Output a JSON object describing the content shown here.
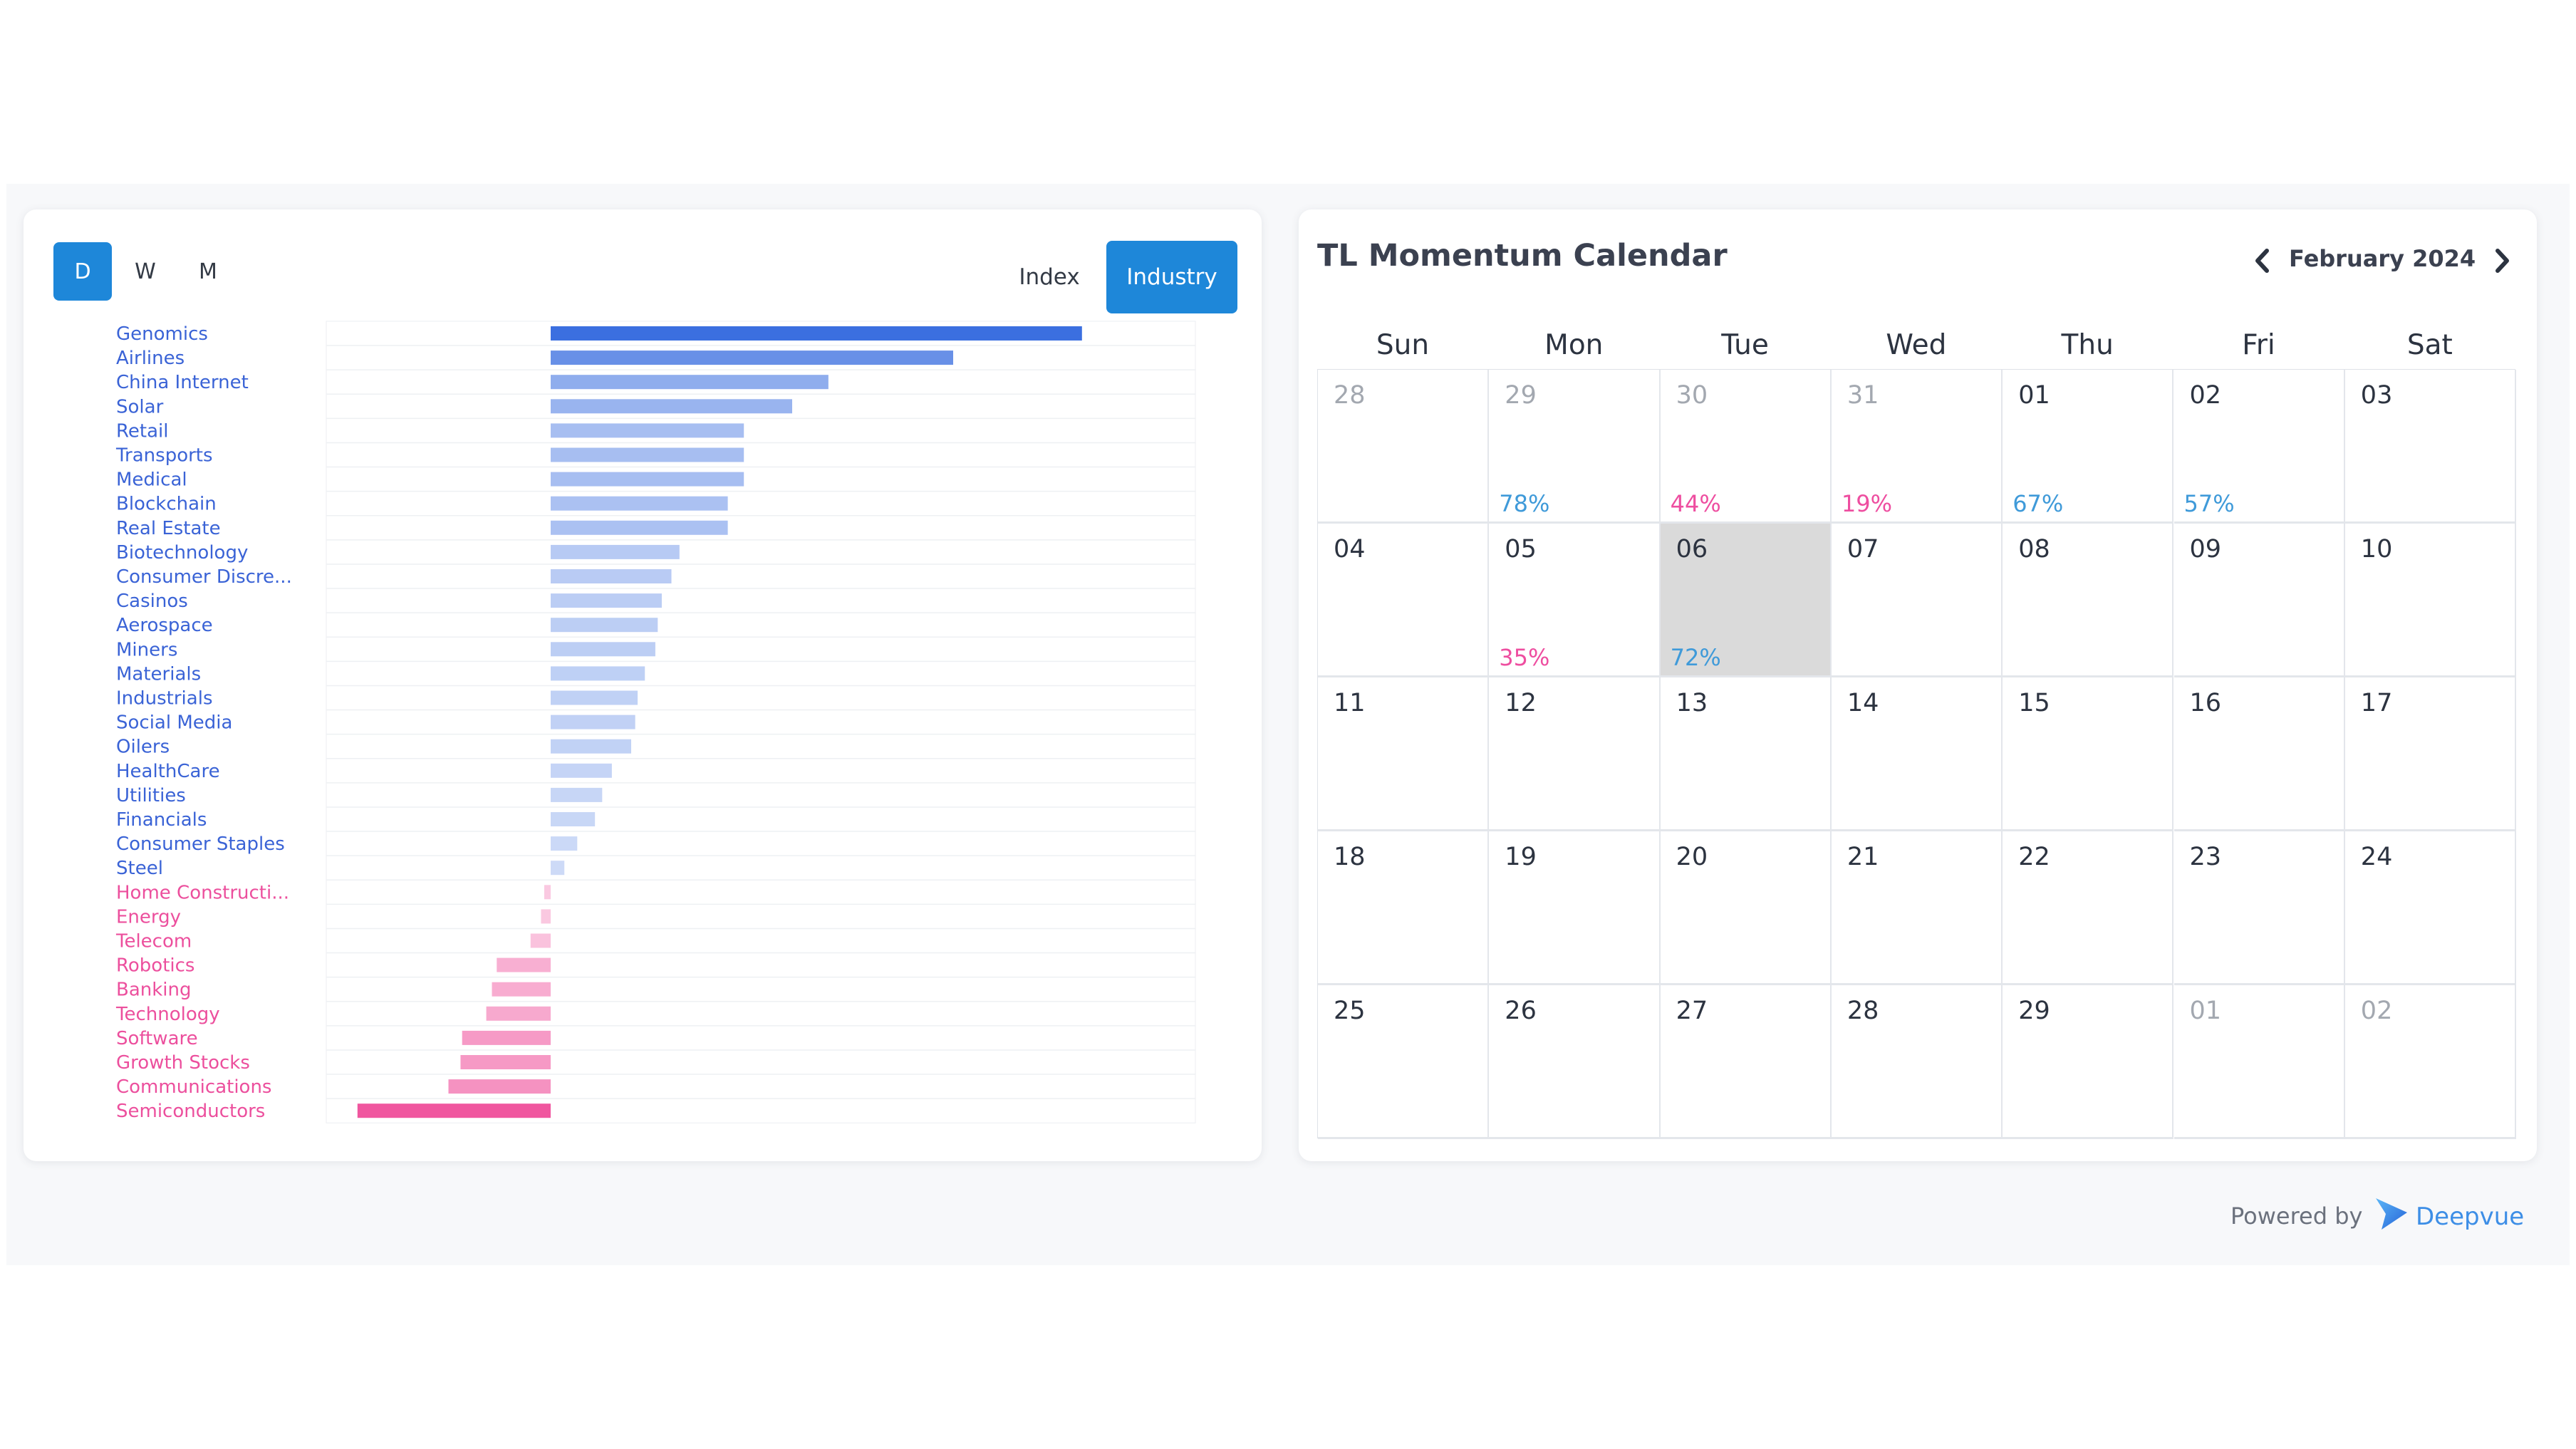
{
  "toolbar": {
    "periods": [
      "D",
      "W",
      "M"
    ],
    "active_period": "D",
    "index_label": "Index",
    "industry_label": "Industry"
  },
  "chart_data": {
    "type": "bar",
    "orientation": "horizontal",
    "categories": [
      "Genomics",
      "Airlines",
      "China Internet",
      "Solar",
      "Retail",
      "Transports",
      "Medical",
      "Blockchain",
      "Real Estate",
      "Biotechnology",
      "Consumer Discre...",
      "Casinos",
      "Aerospace",
      "Miners",
      "Materials",
      "Industrials",
      "Social Media",
      "Oilers",
      "HealthCare",
      "Utilities",
      "Financials",
      "Consumer Staples",
      "Steel",
      "Home Constructi...",
      "Energy",
      "Telecom",
      "Robotics",
      "Banking",
      "Technology",
      "Software",
      "Growth Stocks",
      "Communications",
      "Semiconductors"
    ],
    "values": [
      6.6,
      5.0,
      3.45,
      3.0,
      2.4,
      2.4,
      2.4,
      2.2,
      2.2,
      1.6,
      1.5,
      1.38,
      1.33,
      1.3,
      1.17,
      1.08,
      1.05,
      1.0,
      0.76,
      0.64,
      0.55,
      0.33,
      0.17,
      -0.08,
      -0.12,
      -0.25,
      -0.67,
      -0.73,
      -0.8,
      -1.1,
      -1.12,
      -1.27,
      -2.4
    ],
    "positive_color": "#3b6fe0",
    "negative_color": "#f0569f",
    "grid": true
  },
  "calendar": {
    "title": "TL Momentum Calendar",
    "month_label": "February 2024",
    "weekdays": [
      "Sun",
      "Mon",
      "Tue",
      "Wed",
      "Thu",
      "Fri",
      "Sat"
    ],
    "weeks": [
      [
        {
          "d": "28",
          "other": true
        },
        {
          "d": "29",
          "other": true,
          "pct": "78%",
          "pc": "blue"
        },
        {
          "d": "30",
          "other": true,
          "pct": "44%",
          "pc": "pink"
        },
        {
          "d": "31",
          "other": true,
          "pct": "19%",
          "pc": "pink"
        },
        {
          "d": "01",
          "pct": "67%",
          "pc": "blue"
        },
        {
          "d": "02",
          "pct": "57%",
          "pc": "blue"
        },
        {
          "d": "03"
        }
      ],
      [
        {
          "d": "04"
        },
        {
          "d": "05",
          "pct": "35%",
          "pc": "pink"
        },
        {
          "d": "06",
          "today": true,
          "pct": "72%",
          "pc": "blue"
        },
        {
          "d": "07"
        },
        {
          "d": "08"
        },
        {
          "d": "09"
        },
        {
          "d": "10"
        }
      ],
      [
        {
          "d": "11"
        },
        {
          "d": "12"
        },
        {
          "d": "13"
        },
        {
          "d": "14"
        },
        {
          "d": "15"
        },
        {
          "d": "16"
        },
        {
          "d": "17"
        }
      ],
      [
        {
          "d": "18"
        },
        {
          "d": "19"
        },
        {
          "d": "20"
        },
        {
          "d": "21"
        },
        {
          "d": "22"
        },
        {
          "d": "23"
        },
        {
          "d": "24"
        }
      ],
      [
        {
          "d": "25"
        },
        {
          "d": "26"
        },
        {
          "d": "27"
        },
        {
          "d": "28"
        },
        {
          "d": "29"
        },
        {
          "d": "01",
          "other": true
        },
        {
          "d": "02",
          "other": true
        }
      ]
    ],
    "pct_colors": {
      "blue": "#3f9ad9",
      "pink": "#ee4ea0"
    }
  },
  "footer": {
    "powered_by": "Powered by",
    "brand": "Deepvue"
  }
}
